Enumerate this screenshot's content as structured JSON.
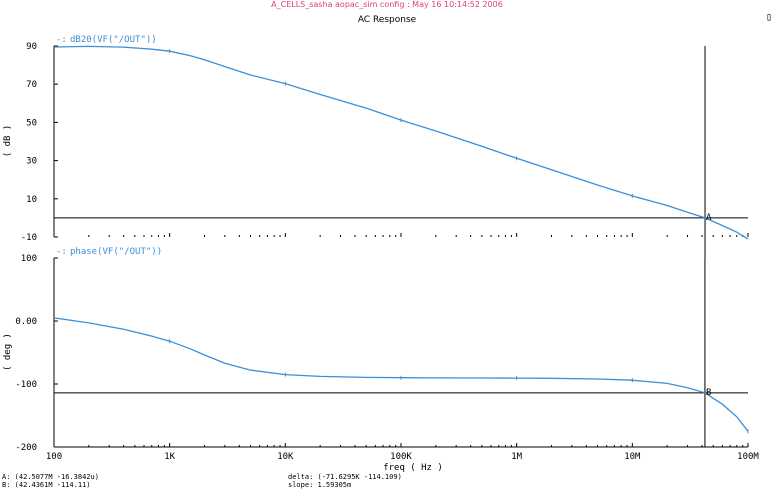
{
  "window": {
    "session_title": "A_CELLS_sasha aopac_sim config : May 16 10:14:52 2006",
    "title": "AC Response",
    "corner_glyph": "▯"
  },
  "colors": {
    "trace": "#3d8fd6",
    "session_title": "#e0407a",
    "axes": "#000000",
    "background": "#ffffff"
  },
  "chart_data": [
    {
      "type": "line",
      "title": "",
      "series": [
        {
          "name": "dB20(VF(\"/OUT\"))",
          "x": [
            100,
            200,
            400,
            700,
            1000,
            1500,
            2000,
            3000,
            5000,
            10000,
            20000,
            50000,
            100000,
            200000,
            500000,
            1000000,
            2000000,
            5000000,
            10000000,
            20000000,
            30000000,
            42507700,
            60000000,
            80000000,
            100000000
          ],
          "y": [
            89.5,
            89.8,
            89.4,
            88.3,
            87.3,
            85,
            82.8,
            79.2,
            74.8,
            70.3,
            64.6,
            57.5,
            51.2,
            45.5,
            37.5,
            31.2,
            25.2,
            17.2,
            11.5,
            6.5,
            3,
            0,
            -4,
            -7.5,
            -11
          ]
        }
      ],
      "markers": [
        {
          "label": "A",
          "x": 42507700,
          "y": 0
        },
        {
          "x": 1000,
          "y": 87.3
        },
        {
          "x": 10000,
          "y": 70.3
        },
        {
          "x": 100000,
          "y": 51.2
        },
        {
          "x": 1000000,
          "y": 31.2
        },
        {
          "x": 10000000,
          "y": 11.5
        }
      ],
      "hline": 0,
      "vline": 42507700,
      "xscale": "log",
      "xlim": [
        100,
        100000000
      ],
      "ylim": [
        -10,
        90
      ],
      "ylabel": "( dB )",
      "yticks": [
        {
          "value": 90,
          "label": "90"
        },
        {
          "value": 70,
          "label": "70"
        },
        {
          "value": 50,
          "label": "50"
        },
        {
          "value": 30,
          "label": "30"
        },
        {
          "value": 10,
          "label": "10"
        },
        {
          "value": -10,
          "label": "-10"
        }
      ],
      "legend": "top-left",
      "grid": false
    },
    {
      "type": "line",
      "title": "",
      "series": [
        {
          "name": "phase(VF(\"/OUT\"))",
          "x": [
            100,
            200,
            400,
            700,
            1000,
            1500,
            2000,
            3000,
            5000,
            10000,
            20000,
            50000,
            100000,
            200000,
            500000,
            1000000,
            2000000,
            5000000,
            10000000,
            20000000,
            30000000,
            42507700,
            60000000,
            80000000,
            100000000
          ],
          "y": [
            5,
            -3,
            -13,
            -24,
            -32,
            -44,
            -54,
            -67,
            -78,
            -85,
            -88,
            -89.5,
            -90,
            -90.3,
            -90.5,
            -90.6,
            -91,
            -92,
            -94,
            -99,
            -106,
            -114,
            -132,
            -152,
            -175
          ]
        }
      ],
      "markers": [
        {
          "label": "B",
          "x": 42436100,
          "y": -114.11
        },
        {
          "x": 1000,
          "y": -32
        },
        {
          "x": 10000,
          "y": -85
        },
        {
          "x": 100000,
          "y": -90
        },
        {
          "x": 1000000,
          "y": -90.6
        },
        {
          "x": 10000000,
          "y": -94
        },
        {
          "x": 100000000,
          "y": -175
        }
      ],
      "hline": -114.11,
      "vline": 42436100,
      "xscale": "log",
      "xlim": [
        100,
        100000000
      ],
      "ylim": [
        -200,
        100
      ],
      "ylabel": "( deg )",
      "yticks": [
        {
          "value": 100,
          "label": "100"
        },
        {
          "value": 0,
          "label": "0.00"
        },
        {
          "value": -100,
          "label": "-100"
        },
        {
          "value": -200,
          "label": "-200"
        }
      ],
      "xticks": [
        {
          "value": 100,
          "label": "100"
        },
        {
          "value": 1000,
          "label": "1K"
        },
        {
          "value": 10000,
          "label": "10K"
        },
        {
          "value": 100000,
          "label": "100K"
        },
        {
          "value": 1000000,
          "label": "1M"
        },
        {
          "value": 10000000,
          "label": "10M"
        },
        {
          "value": 100000000,
          "label": "100M"
        }
      ],
      "xlabel": "freq ( Hz )",
      "legend": "top-left",
      "grid": false
    }
  ],
  "markers_readout": {
    "a": "A: (42.5077M -16.3842u)",
    "b": "B: (42.4361M -114.11)",
    "delta": "delta: (-71.6295K -114.109)",
    "slope": "slope: 1.59305m"
  }
}
